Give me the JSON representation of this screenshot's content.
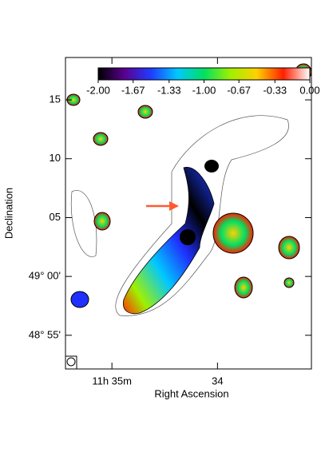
{
  "chart_data": {
    "type": "image",
    "x_label": "Right Ascension",
    "y_label": "Declination",
    "xlim": [
      35.44,
      33.11
    ],
    "xticks": [
      {
        "value": 35,
        "label": "11h 35m"
      },
      34
    ],
    "ylim": [
      48.869,
      49.31
    ],
    "yticks": [
      {
        "value": 49.25,
        "label": "15"
      },
      {
        "value": 49.1667,
        "label": "10"
      },
      {
        "value": 49.0833,
        "label": "05"
      },
      {
        "value": 49.0,
        "label": "49° 00'"
      },
      {
        "value": 48.9167,
        "label": "48° 55'"
      }
    ],
    "colorbar": {
      "lim": [
        -2,
        0
      ],
      "ticks": [
        {
          "value": -2,
          "label": "-2.00"
        },
        {
          "value": -1.67,
          "label": "-1.67"
        },
        {
          "value": -1.33,
          "label": "-1.33"
        },
        {
          "value": -1,
          "label": "-1.00"
        },
        {
          "value": -0.67,
          "label": "-0.67"
        },
        {
          "value": -0.33,
          "label": "-0.33"
        },
        {
          "value": 0,
          "label": "0.00"
        }
      ],
      "colors": [
        "#000000",
        "#5a0090",
        "#1f3cff",
        "#00c8ff",
        "#00e060",
        "#a0f000",
        "#ffd000",
        "#ff2000",
        "#ffffff"
      ]
    }
  }
}
